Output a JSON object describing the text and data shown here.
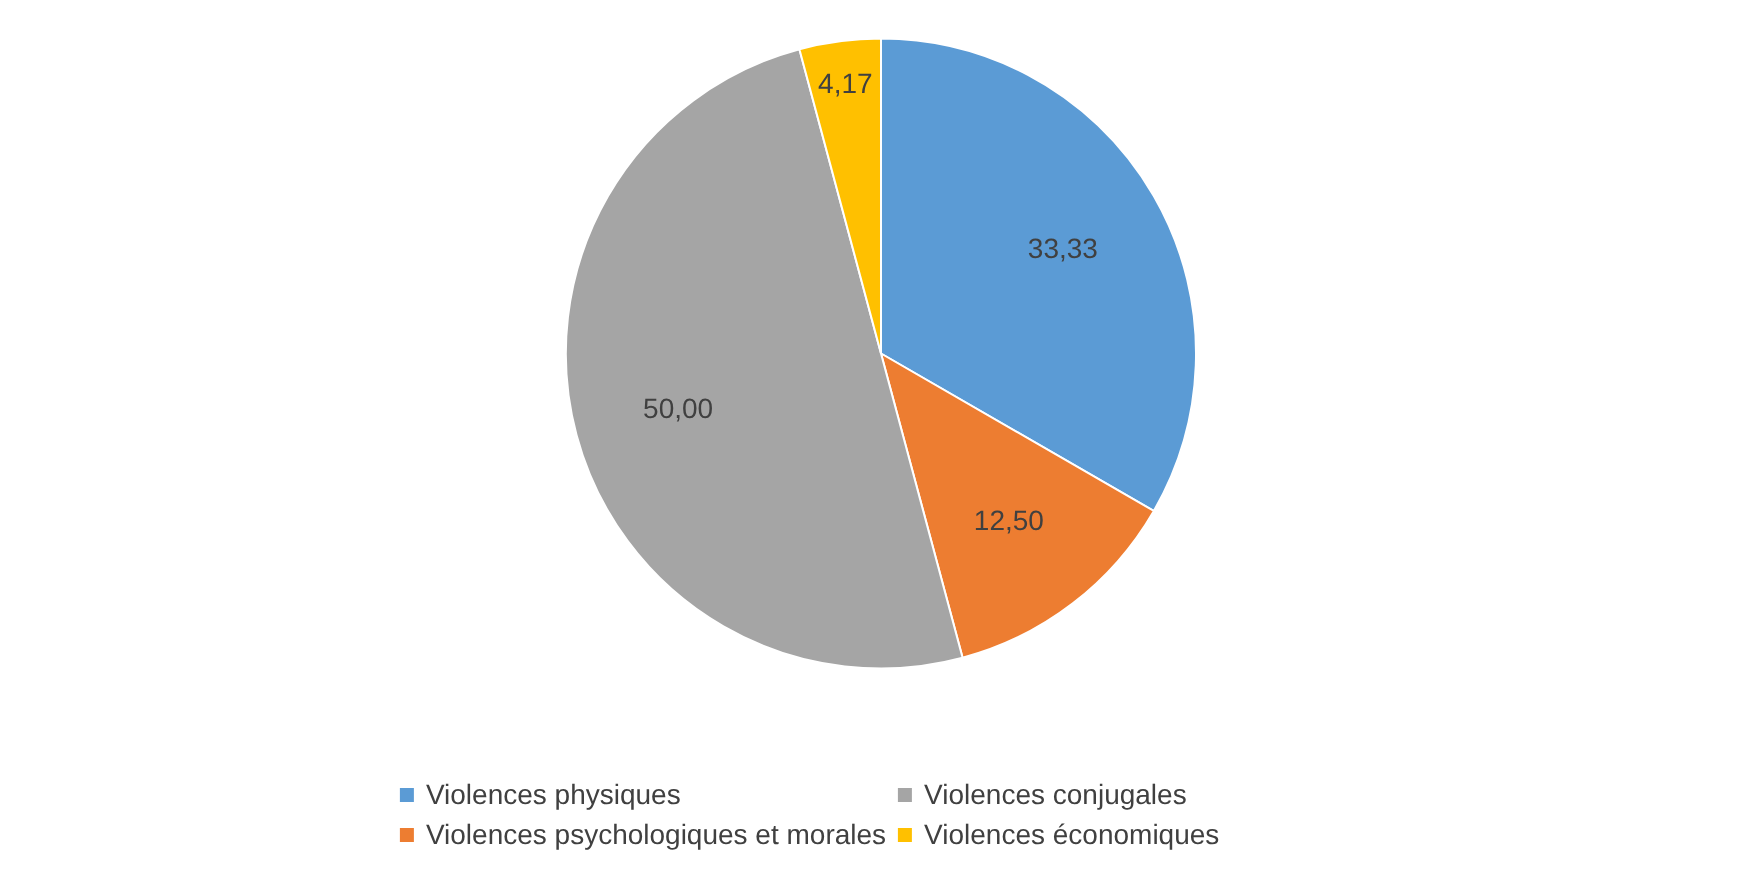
{
  "chart_data": {
    "type": "pie",
    "categories": [
      "Violences physiques",
      "Violences psychologiques et morales",
      "Violences conjugales",
      "Violences économiques"
    ],
    "values": [
      33.33,
      12.5,
      50.0,
      4.17
    ],
    "colors": [
      "#5b9bd5",
      "#ed7d31",
      "#a5a5a5",
      "#ffc000"
    ],
    "value_labels": [
      "33,33",
      "12,50",
      "50,00",
      "4,17"
    ],
    "legend": "bottom"
  }
}
